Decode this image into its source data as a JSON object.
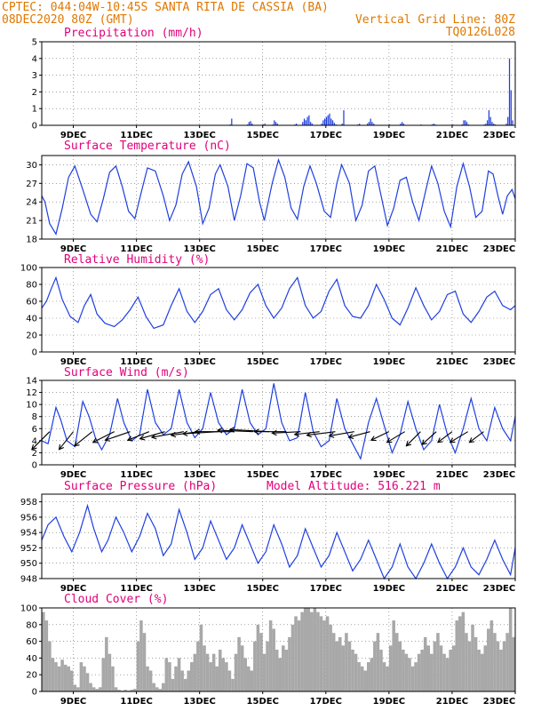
{
  "header": {
    "line1_left": "CPTEC:  044:04W-10:45S  SANTA RITA DE CASSIA (BA)",
    "line2_left": "08DEC2020 80Z (GMT)",
    "line2_right": "Vertical Grid Line: 80Z",
    "line3_right": "TQ0126L028"
  },
  "colors": {
    "header": "#e07800",
    "title": "#e0007a",
    "series": "#1f3fe0",
    "cloud": "#a8a8a8",
    "wind_arrow": "#000000"
  },
  "chart_data": [
    {
      "id": "precip",
      "type": "bar",
      "title": "Precipitation (mm/h)",
      "ylim": [
        0,
        5
      ],
      "yticks": [
        0,
        1,
        2,
        3,
        4,
        5
      ],
      "xlim": [
        0,
        15
      ],
      "xticks": [
        "9DEC",
        "11DEC",
        "13DEC",
        "15DEC",
        "17DEC",
        "19DEC",
        "21DEC",
        "23DEC"
      ],
      "xtick_pos": [
        1,
        3,
        5,
        7,
        9,
        11,
        13,
        15
      ],
      "grid": true,
      "x": [
        5.95,
        6.0,
        6.5,
        6.55,
        6.6,
        6.65,
        7.0,
        7.05,
        7.3,
        7.35,
        7.4,
        7.45,
        8.0,
        8.05,
        8.25,
        8.3,
        8.35,
        8.4,
        8.45,
        8.5,
        8.55,
        8.85,
        8.9,
        8.95,
        9.0,
        9.05,
        9.1,
        9.15,
        9.2,
        9.25,
        9.3,
        9.5,
        9.55,
        10.0,
        10.05,
        10.3,
        10.35,
        10.4,
        10.45,
        10.5,
        11.0,
        11.35,
        11.4,
        11.45,
        12.0,
        12.35,
        12.4,
        12.45,
        13.0,
        13.3,
        13.35,
        13.4,
        13.45,
        13.5,
        14.0,
        14.05,
        14.1,
        14.15,
        14.2,
        14.25,
        14.3,
        14.35,
        14.7,
        14.75,
        14.8,
        14.85,
        14.9
      ],
      "values": [
        0.05,
        0.4,
        0.05,
        0.2,
        0.25,
        0.1,
        0.05,
        0.1,
        0.05,
        0.3,
        0.2,
        0.1,
        0.05,
        0.1,
        0.2,
        0.4,
        0.3,
        0.5,
        0.6,
        0.2,
        0.1,
        0.1,
        0.3,
        0.4,
        0.5,
        0.6,
        0.7,
        0.4,
        0.3,
        0.15,
        0.05,
        0.1,
        0.9,
        0.05,
        0.1,
        0.1,
        0.2,
        0.4,
        0.2,
        0.1,
        0.05,
        0.1,
        0.2,
        0.1,
        0.05,
        0.05,
        0.1,
        0.05,
        0.05,
        0.05,
        0.3,
        0.3,
        0.2,
        0.05,
        0.05,
        0.1,
        0.3,
        0.9,
        0.5,
        0.2,
        0.1,
        0.05,
        0.1,
        0.5,
        4.0,
        2.1,
        0.3
      ]
    },
    {
      "id": "temp",
      "type": "line",
      "title": "Surface Temperature (nC)",
      "ylim": [
        18,
        31.5
      ],
      "yticks": [
        18,
        21,
        24,
        27,
        30
      ],
      "xlim": [
        0,
        15
      ],
      "xticks": [
        "9DEC",
        "11DEC",
        "13DEC",
        "15DEC",
        "17DEC",
        "19DEC",
        "21DEC",
        "23DEC"
      ],
      "xtick_pos": [
        1,
        3,
        5,
        7,
        9,
        11,
        13,
        15
      ],
      "grid": true,
      "x": [
        0.0,
        0.1,
        0.25,
        0.45,
        0.65,
        0.85,
        1.05,
        1.3,
        1.55,
        1.75,
        1.95,
        2.15,
        2.35,
        2.55,
        2.75,
        2.95,
        3.15,
        3.35,
        3.6,
        3.85,
        4.05,
        4.25,
        4.45,
        4.65,
        4.9,
        5.1,
        5.3,
        5.5,
        5.65,
        5.9,
        6.1,
        6.3,
        6.5,
        6.7,
        6.9,
        7.05,
        7.3,
        7.5,
        7.7,
        7.9,
        8.1,
        8.3,
        8.5,
        8.7,
        8.95,
        9.15,
        9.35,
        9.5,
        9.75,
        9.95,
        10.15,
        10.35,
        10.55,
        10.75,
        10.95,
        11.15,
        11.35,
        11.55,
        11.75,
        11.95,
        12.15,
        12.35,
        12.55,
        12.75,
        12.95,
        13.15,
        13.35,
        13.55,
        13.75,
        13.95,
        14.15,
        14.3,
        14.45,
        14.6,
        14.75,
        14.9,
        15.0
      ],
      "values": [
        25.0,
        24.0,
        20.5,
        18.8,
        23.0,
        28.0,
        29.8,
        26.0,
        22.0,
        20.8,
        24.5,
        28.8,
        29.8,
        26.5,
        22.5,
        21.3,
        25.5,
        29.5,
        29.0,
        25.0,
        21.0,
        23.5,
        28.5,
        30.5,
        26.5,
        20.5,
        23.0,
        28.5,
        30.0,
        26.5,
        21.0,
        25.0,
        30.2,
        29.5,
        24.0,
        21.0,
        27.0,
        30.8,
        28.0,
        23.0,
        21.2,
        26.5,
        29.8,
        27.0,
        22.5,
        21.5,
        27.0,
        30.0,
        27.0,
        21.0,
        23.5,
        29.0,
        29.8,
        25.0,
        20.2,
        23.0,
        27.5,
        28.0,
        24.0,
        21.0,
        25.5,
        29.8,
        27.0,
        22.5,
        20.0,
        26.5,
        30.2,
        26.5,
        21.5,
        22.5,
        29.0,
        28.5,
        25.0,
        22.0,
        25.0,
        26.0,
        24.5
      ]
    },
    {
      "id": "rh",
      "type": "line",
      "title": "Relative Humidity (%)",
      "ylim": [
        0,
        100
      ],
      "yticks": [
        0,
        20,
        40,
        60,
        80,
        100
      ],
      "xlim": [
        0,
        15
      ],
      "xticks": [
        "9DEC",
        "11DEC",
        "13DEC",
        "15DEC",
        "17DEC",
        "19DEC",
        "21DEC",
        "23DEC"
      ],
      "xtick_pos": [
        1,
        3,
        5,
        7,
        9,
        11,
        13,
        15
      ],
      "grid": true,
      "x": [
        0.0,
        0.15,
        0.3,
        0.45,
        0.65,
        0.9,
        1.15,
        1.35,
        1.55,
        1.75,
        2.0,
        2.3,
        2.55,
        2.8,
        3.05,
        3.3,
        3.55,
        3.85,
        4.1,
        4.35,
        4.6,
        4.85,
        5.1,
        5.35,
        5.6,
        5.85,
        6.1,
        6.35,
        6.6,
        6.85,
        7.1,
        7.35,
        7.6,
        7.85,
        8.1,
        8.35,
        8.6,
        8.85,
        9.1,
        9.35,
        9.6,
        9.85,
        10.1,
        10.35,
        10.6,
        10.85,
        11.1,
        11.35,
        11.6,
        11.85,
        12.1,
        12.35,
        12.6,
        12.85,
        13.1,
        13.35,
        13.6,
        13.85,
        14.1,
        14.35,
        14.6,
        14.85,
        15.0
      ],
      "values": [
        52,
        60,
        75,
        88,
        62,
        42,
        35,
        55,
        68,
        45,
        34,
        30,
        38,
        50,
        65,
        42,
        28,
        32,
        55,
        75,
        48,
        35,
        48,
        68,
        75,
        50,
        38,
        50,
        70,
        80,
        55,
        40,
        52,
        75,
        88,
        55,
        40,
        48,
        72,
        86,
        55,
        42,
        40,
        55,
        80,
        62,
        40,
        32,
        52,
        76,
        55,
        38,
        48,
        68,
        72,
        45,
        35,
        48,
        65,
        72,
        55,
        50,
        55
      ]
    },
    {
      "id": "wind",
      "type": "line",
      "title": "Surface Wind (m/s)",
      "ylim": [
        0,
        14
      ],
      "yticks": [
        0,
        2,
        4,
        6,
        8,
        10,
        12,
        14
      ],
      "xlim": [
        0,
        15
      ],
      "xticks": [
        "9DEC",
        "11DEC",
        "13DEC",
        "15DEC",
        "17DEC",
        "19DEC",
        "21DEC",
        "23DEC"
      ],
      "xtick_pos": [
        1,
        3,
        5,
        7,
        9,
        11,
        13,
        15
      ],
      "grid": true,
      "x": [
        0.0,
        0.2,
        0.45,
        0.6,
        0.8,
        1.05,
        1.3,
        1.5,
        1.7,
        1.9,
        2.15,
        2.4,
        2.6,
        2.85,
        3.1,
        3.35,
        3.6,
        3.85,
        4.1,
        4.35,
        4.6,
        4.85,
        5.1,
        5.35,
        5.6,
        5.85,
        6.1,
        6.35,
        6.6,
        6.85,
        7.1,
        7.35,
        7.6,
        7.85,
        8.1,
        8.35,
        8.6,
        8.85,
        9.1,
        9.35,
        9.6,
        9.85,
        10.1,
        10.35,
        10.6,
        10.85,
        11.1,
        11.35,
        11.6,
        11.85,
        12.1,
        12.35,
        12.6,
        12.85,
        13.1,
        13.35,
        13.6,
        13.85,
        14.1,
        14.35,
        14.6,
        14.85,
        15.0
      ],
      "values": [
        4.0,
        3.5,
        9.5,
        7.5,
        4.0,
        3.0,
        10.5,
        8.0,
        4.5,
        2.5,
        5.0,
        11.0,
        7.0,
        4.0,
        5.0,
        12.5,
        7.0,
        5.0,
        6.0,
        12.5,
        7.0,
        4.5,
        6.0,
        12.0,
        7.0,
        5.0,
        6.0,
        12.5,
        7.0,
        5.0,
        6.0,
        13.5,
        7.0,
        4.0,
        4.5,
        12.0,
        5.5,
        3.0,
        4.0,
        11.0,
        6.0,
        3.5,
        1.0,
        7.0,
        11.0,
        6.5,
        2.0,
        5.0,
        10.5,
        6.0,
        2.5,
        4.0,
        10.0,
        5.0,
        2.0,
        6.0,
        11.0,
        6.0,
        4.0,
        9.5,
        6.0,
        4.0,
        8.0
      ],
      "arrows": {
        "x": [
          0.25,
          1.0,
          1.6,
          2.3,
          2.8,
          3.4,
          3.9,
          4.5,
          5.0,
          5.6,
          6.1,
          6.7,
          7.2,
          7.75,
          8.2,
          8.8,
          9.3,
          9.9,
          10.4,
          11.0,
          11.5,
          12.0,
          12.5,
          13.0,
          13.5,
          14.0
        ],
        "y": [
          5.5,
          5.5,
          5.5,
          5.5,
          5.5,
          5.5,
          5.5,
          5.5,
          5.5,
          5.5,
          5.5,
          5.5,
          5.5,
          5.5,
          5.5,
          5.5,
          5.5,
          5.5,
          5.5,
          5.5,
          5.5,
          5.5,
          5.5,
          5.5,
          5.5,
          5.5
        ],
        "u": [
          -2.5,
          -2.0,
          -2.5,
          -3.0,
          -3.5,
          -3.0,
          -3.5,
          -4.5,
          -4.0,
          -5.0,
          -5.5,
          -5.0,
          -5.5,
          -4.5,
          -4.0,
          -3.5,
          -4.0,
          -3.5,
          -3.0,
          -2.5,
          -2.5,
          -2.0,
          -2.0,
          -2.0,
          -2.5,
          -2.0
        ],
        "v": [
          -2.5,
          -2.5,
          -2.0,
          -1.5,
          -1.2,
          -1.2,
          -1.0,
          -0.8,
          -0.5,
          -0.3,
          0.0,
          0.2,
          0.3,
          0.0,
          -0.2,
          -0.4,
          -0.5,
          -0.6,
          -0.8,
          -1.2,
          -1.5,
          -2.0,
          -1.8,
          -1.5,
          -1.5,
          -1.5
        ]
      }
    },
    {
      "id": "pres",
      "type": "line",
      "title": "Surface Pressure (hPa)",
      "annotation": "Model Altitude: 516.221 m",
      "ylim": [
        948,
        959
      ],
      "yticks": [
        948,
        950,
        952,
        954,
        956,
        958
      ],
      "xlim": [
        0,
        15
      ],
      "xticks": [
        "9DEC",
        "11DEC",
        "13DEC",
        "15DEC",
        "17DEC",
        "19DEC",
        "21DEC",
        "23DEC"
      ],
      "xtick_pos": [
        1,
        3,
        5,
        7,
        9,
        11,
        13,
        15
      ],
      "grid": true,
      "x": [
        0.0,
        0.2,
        0.45,
        0.7,
        0.95,
        1.2,
        1.45,
        1.65,
        1.9,
        2.1,
        2.35,
        2.6,
        2.85,
        3.1,
        3.35,
        3.6,
        3.85,
        4.1,
        4.35,
        4.6,
        4.85,
        5.1,
        5.35,
        5.6,
        5.85,
        6.1,
        6.35,
        6.6,
        6.85,
        7.1,
        7.35,
        7.6,
        7.85,
        8.1,
        8.35,
        8.6,
        8.85,
        9.1,
        9.35,
        9.6,
        9.85,
        10.1,
        10.35,
        10.6,
        10.85,
        11.1,
        11.35,
        11.6,
        11.85,
        12.1,
        12.35,
        12.6,
        12.85,
        13.1,
        13.35,
        13.6,
        13.85,
        14.1,
        14.35,
        14.6,
        14.85,
        15.0
      ],
      "values": [
        953.0,
        955.0,
        956.0,
        953.5,
        951.5,
        954.0,
        957.5,
        954.5,
        951.5,
        953.0,
        956.0,
        954.0,
        951.5,
        953.5,
        956.5,
        954.5,
        951.0,
        952.5,
        957.0,
        954.0,
        950.5,
        952.0,
        955.5,
        953.0,
        950.5,
        952.0,
        955.0,
        952.5,
        950.0,
        951.5,
        955.0,
        952.5,
        949.5,
        951.0,
        954.5,
        952.0,
        949.5,
        951.0,
        954.0,
        951.5,
        949.0,
        950.5,
        953.0,
        950.5,
        948.0,
        949.5,
        952.5,
        949.5,
        948.0,
        950.0,
        952.5,
        950.0,
        948.0,
        949.5,
        952.0,
        949.5,
        948.5,
        950.5,
        953.0,
        950.5,
        948.5,
        952.0
      ]
    },
    {
      "id": "cloud",
      "type": "bar",
      "title": "Cloud Cover (%)",
      "ylim": [
        0,
        100
      ],
      "yticks": [
        0,
        20,
        40,
        60,
        80,
        100
      ],
      "xlim": [
        0,
        15
      ],
      "xticks": [
        "9DEC",
        "11DEC",
        "13DEC",
        "15DEC",
        "17DEC",
        "19DEC",
        "21DEC",
        "23DEC"
      ],
      "xtick_pos": [
        1,
        3,
        5,
        7,
        9,
        11,
        13,
        15
      ],
      "grid": true,
      "x": [
        0.0,
        0.1,
        0.2,
        0.3,
        0.4,
        0.5,
        0.6,
        0.7,
        0.8,
        0.9,
        1.0,
        1.1,
        1.2,
        1.3,
        1.4,
        1.5,
        1.6,
        1.7,
        1.8,
        1.9,
        2.0,
        2.1,
        2.2,
        2.3,
        2.4,
        2.5,
        2.6,
        2.7,
        2.8,
        2.9,
        3.0,
        3.1,
        3.2,
        3.3,
        3.4,
        3.5,
        3.6,
        3.7,
        3.8,
        3.9,
        4.0,
        4.1,
        4.2,
        4.3,
        4.4,
        4.5,
        4.6,
        4.7,
        4.8,
        4.9,
        5.0,
        5.1,
        5.2,
        5.3,
        5.4,
        5.5,
        5.6,
        5.7,
        5.8,
        5.9,
        6.0,
        6.1,
        6.2,
        6.3,
        6.4,
        6.5,
        6.6,
        6.7,
        6.8,
        6.9,
        7.0,
        7.1,
        7.2,
        7.3,
        7.4,
        7.5,
        7.6,
        7.7,
        7.8,
        7.9,
        8.0,
        8.1,
        8.2,
        8.3,
        8.4,
        8.5,
        8.6,
        8.7,
        8.8,
        8.9,
        9.0,
        9.1,
        9.2,
        9.3,
        9.4,
        9.5,
        9.6,
        9.7,
        9.8,
        9.9,
        10.0,
        10.1,
        10.2,
        10.3,
        10.4,
        10.5,
        10.6,
        10.7,
        10.8,
        10.9,
        11.0,
        11.1,
        11.2,
        11.3,
        11.4,
        11.5,
        11.6,
        11.7,
        11.8,
        11.9,
        12.0,
        12.1,
        12.2,
        12.3,
        12.4,
        12.5,
        12.6,
        12.7,
        12.8,
        12.9,
        13.0,
        13.1,
        13.2,
        13.3,
        13.4,
        13.5,
        13.6,
        13.7,
        13.8,
        13.9,
        14.0,
        14.1,
        14.2,
        14.3,
        14.4,
        14.5,
        14.6,
        14.7,
        14.8,
        14.9
      ],
      "values": [
        95,
        85,
        60,
        40,
        35,
        30,
        38,
        32,
        30,
        25,
        8,
        5,
        35,
        30,
        22,
        10,
        5,
        3,
        5,
        40,
        65,
        45,
        30,
        5,
        2,
        1,
        2,
        1,
        2,
        3,
        60,
        85,
        70,
        30,
        25,
        10,
        5,
        3,
        10,
        40,
        35,
        15,
        30,
        40,
        25,
        15,
        25,
        35,
        45,
        60,
        80,
        55,
        45,
        35,
        45,
        30,
        50,
        40,
        35,
        25,
        15,
        45,
        65,
        55,
        40,
        30,
        25,
        60,
        80,
        70,
        45,
        60,
        85,
        75,
        50,
        40,
        55,
        50,
        65,
        80,
        90,
        85,
        95,
        100,
        100,
        95,
        100,
        95,
        90,
        85,
        90,
        80,
        70,
        60,
        65,
        55,
        70,
        60,
        50,
        45,
        35,
        30,
        25,
        35,
        40,
        60,
        70,
        50,
        35,
        30,
        55,
        85,
        70,
        60,
        50,
        45,
        40,
        30,
        35,
        45,
        50,
        65,
        55,
        45,
        60,
        70,
        55,
        45,
        40,
        50,
        55,
        85,
        90,
        95,
        70,
        60,
        80,
        65,
        50,
        45,
        55,
        75,
        85,
        70,
        60,
        50,
        60,
        70,
        100,
        65
      ]
    }
  ]
}
